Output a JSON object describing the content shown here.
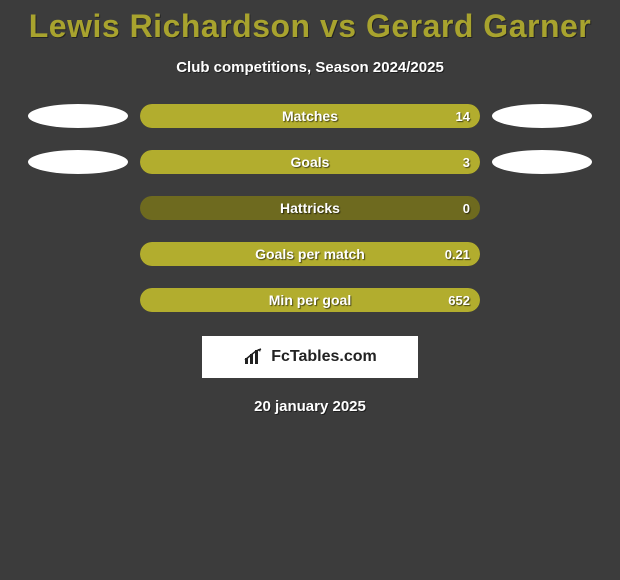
{
  "background_color": "#3c3c3c",
  "title": {
    "text": "Lewis Richardson vs Gerard Garner",
    "color": "#a8a32e",
    "fontsize": 32,
    "fontweight": 800
  },
  "subtitle": {
    "text": "Club competitions, Season 2024/2025",
    "color": "#ffffff",
    "fontsize": 15
  },
  "bar_track_color": "#6e6a1f",
  "bar_fill_color": "#b2ad2e",
  "ellipse_color": "#ffffff",
  "rows": [
    {
      "label": "Matches",
      "value": "14",
      "fill_pct": 100,
      "left_ellipse": true,
      "right_ellipse": true
    },
    {
      "label": "Goals",
      "value": "3",
      "fill_pct": 100,
      "left_ellipse": true,
      "right_ellipse": true
    },
    {
      "label": "Hattricks",
      "value": "0",
      "fill_pct": 0,
      "left_ellipse": false,
      "right_ellipse": false
    },
    {
      "label": "Goals per match",
      "value": "0.21",
      "fill_pct": 100,
      "left_ellipse": false,
      "right_ellipse": false
    },
    {
      "label": "Min per goal",
      "value": "652",
      "fill_pct": 100,
      "left_ellipse": false,
      "right_ellipse": false
    }
  ],
  "watermark": {
    "text": "FcTables.com",
    "icon": "bar-chart-icon",
    "bg": "#ffffff",
    "text_color": "#222222"
  },
  "date": {
    "text": "20 january 2025",
    "color": "#ffffff"
  }
}
